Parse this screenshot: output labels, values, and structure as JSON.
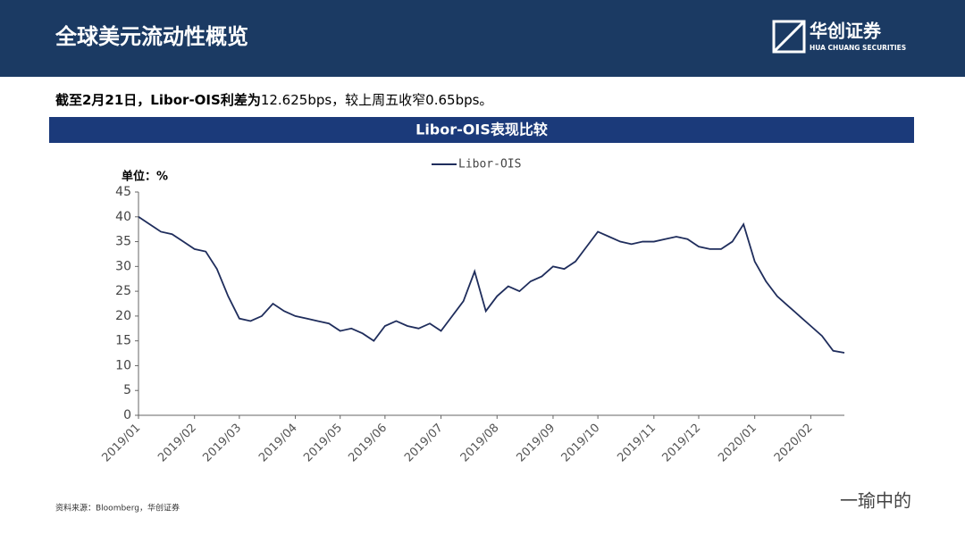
{
  "header": {
    "title": "全球美元流动性概览",
    "logo_name": "华创证券",
    "logo_sub": "HUA CHUANG SECURITIES"
  },
  "summary": {
    "bold": "截至2月21日，Libor-OIS利差为",
    "rest": "12.625bps，较上周五收窄0.65bps。"
  },
  "source": "资料来源：Bloomberg，华创证券",
  "watermark": "一瑜中的",
  "chart_data": {
    "type": "line",
    "title": "Libor-OIS表现比较",
    "unit_label": "单位：%",
    "categories": [
      "2019/01",
      null,
      null,
      null,
      null,
      "2019/02",
      null,
      null,
      null,
      "2019/03",
      null,
      null,
      null,
      null,
      "2019/04",
      null,
      null,
      null,
      "2019/05",
      null,
      null,
      null,
      "2019/06",
      null,
      null,
      null,
      null,
      "2019/07",
      null,
      null,
      null,
      null,
      "2019/08",
      null,
      null,
      null,
      null,
      "2019/09",
      null,
      null,
      null,
      "2019/10",
      null,
      null,
      null,
      null,
      "2019/11",
      null,
      null,
      null,
      "2019/12",
      null,
      null,
      null,
      null,
      "2020/01",
      null,
      null,
      null,
      null,
      "2020/02",
      null,
      null,
      null
    ],
    "series": [
      {
        "name": "Libor-OIS",
        "color": "#1f2d5c",
        "values": [
          40,
          38.5,
          37,
          36.5,
          35,
          33.5,
          33,
          29.5,
          24,
          19.5,
          19,
          20,
          22.5,
          21,
          20,
          19.5,
          19,
          18.5,
          17,
          17.5,
          16.5,
          15,
          18,
          19,
          18,
          17.5,
          18.5,
          17,
          20,
          23,
          29,
          21,
          24,
          26,
          25,
          27,
          28,
          30,
          29.5,
          31,
          34,
          37,
          36,
          35,
          34.5,
          35,
          35,
          35.5,
          36,
          35.5,
          34,
          33.5,
          33.5,
          35,
          38.5,
          31,
          27,
          24,
          22,
          20,
          18,
          16,
          13,
          12.6
        ]
      }
    ],
    "ylim": [
      0,
      45
    ],
    "yticks": [
      0,
      5,
      10,
      15,
      20,
      25,
      30,
      35,
      40,
      45
    ],
    "grid": false,
    "legend": "top"
  }
}
